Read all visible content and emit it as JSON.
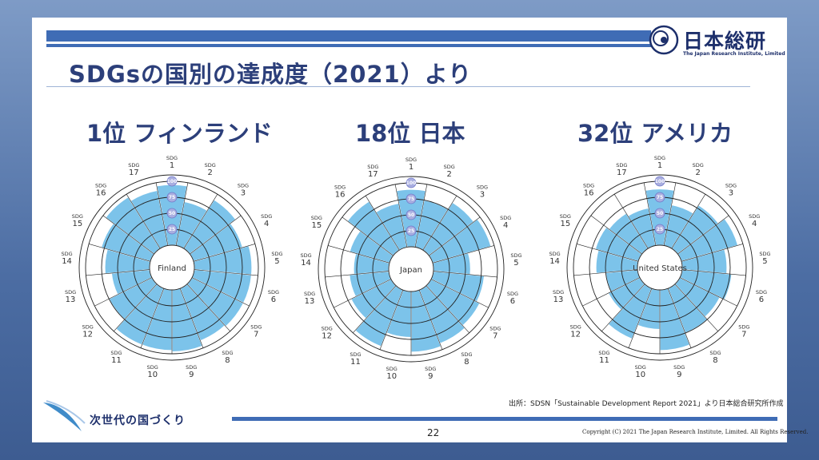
{
  "header": {
    "logo_name": "日本総研",
    "logo_sub": "The Japan Research Institute, Limited"
  },
  "title": "SDGsの国別の達成度（2021）より",
  "charts": [
    {
      "rank_label": "1位  フィンランド"
    },
    {
      "rank_label": "18位  日本"
    },
    {
      "rank_label": "32位  アメリカ"
    }
  ],
  "chart_data": [
    {
      "type": "polar-bar",
      "center_label": "Finland",
      "categories": [
        "1",
        "2",
        "3",
        "4",
        "5",
        "6",
        "7",
        "8",
        "9",
        "10",
        "11",
        "12",
        "13",
        "14",
        "15",
        "16",
        "17"
      ],
      "category_prefix": "SDG",
      "scale_ticks": [
        "100",
        "75",
        "50",
        "25"
      ],
      "rlim": [
        0,
        100
      ],
      "values": [
        95,
        70,
        90,
        80,
        90,
        90,
        90,
        88,
        97,
        95,
        95,
        75,
        60,
        70,
        80,
        95,
        88
      ],
      "color": "#7cc3ea"
    },
    {
      "type": "polar-bar",
      "center_label": "Japan",
      "categories": [
        "1",
        "2",
        "3",
        "4",
        "5",
        "6",
        "7",
        "8",
        "9",
        "10",
        "11",
        "12",
        "13",
        "14",
        "15",
        "16",
        "17"
      ],
      "category_prefix": "SDG",
      "scale_ticks": [
        "100",
        "75",
        "50",
        "25"
      ],
      "rlim": [
        0,
        100
      ],
      "values": [
        90,
        75,
        88,
        95,
        58,
        80,
        85,
        90,
        95,
        72,
        95,
        70,
        62,
        55,
        65,
        90,
        70
      ],
      "color": "#7cc3ea"
    },
    {
      "type": "polar-bar",
      "center_label": "United States",
      "categories": [
        "1",
        "2",
        "3",
        "4",
        "5",
        "6",
        "7",
        "8",
        "9",
        "10",
        "11",
        "12",
        "13",
        "14",
        "15",
        "16",
        "17"
      ],
      "category_prefix": "SDG",
      "scale_ticks": [
        "100",
        "75",
        "50",
        "25"
      ],
      "rlim": [
        0,
        100
      ],
      "values": [
        88,
        65,
        80,
        92,
        70,
        78,
        70,
        75,
        95,
        62,
        85,
        55,
        50,
        65,
        70,
        65,
        60
      ],
      "color": "#7cc3ea"
    }
  ],
  "source": "出所：SDSN「Sustainable Development Report 2021」より日本総合研究所作成",
  "footer": {
    "tagline": "次世代の国づくり",
    "page": "22",
    "copyright": "Copyright (C) 2021 The Japan Research Institute, Limited. All Rights Reserved."
  }
}
